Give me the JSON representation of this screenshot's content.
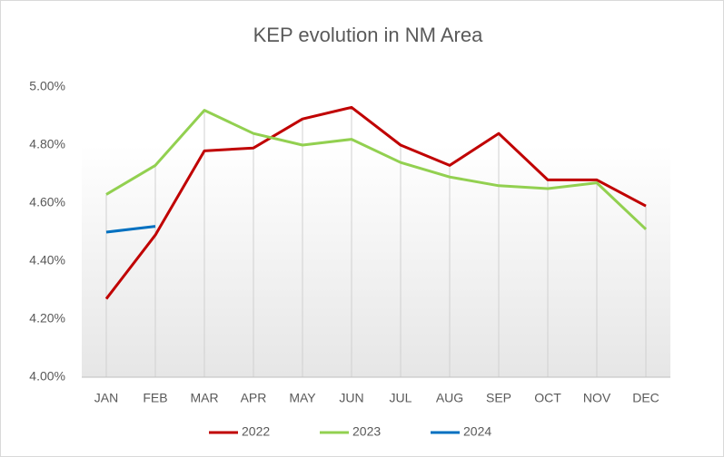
{
  "chart_data": {
    "type": "line",
    "title": "KEP evolution in NM Area",
    "categories": [
      "JAN",
      "FEB",
      "MAR",
      "APR",
      "MAY",
      "JUN",
      "JUL",
      "AUG",
      "SEP",
      "OCT",
      "NOV",
      "DEC"
    ],
    "series": [
      {
        "name": "2022",
        "color": "#c00000",
        "values": [
          4.27,
          4.49,
          4.78,
          4.79,
          4.89,
          4.93,
          4.8,
          4.73,
          4.84,
          4.68,
          4.68,
          4.59
        ]
      },
      {
        "name": "2023",
        "color": "#92d050",
        "values": [
          4.63,
          4.73,
          4.92,
          4.84,
          4.8,
          4.82,
          4.74,
          4.69,
          4.66,
          4.65,
          4.67,
          4.51
        ]
      },
      {
        "name": "2024",
        "color": "#0070c0",
        "values": [
          4.5,
          4.52,
          null,
          null,
          null,
          null,
          null,
          null,
          null,
          null,
          null,
          null
        ]
      }
    ],
    "ylim": [
      4.0,
      5.0
    ],
    "yticks": [
      {
        "value": 4.0,
        "label": "4.00%"
      },
      {
        "value": 4.2,
        "label": "4.20%"
      },
      {
        "value": 4.4,
        "label": "4.40%"
      },
      {
        "value": 4.6,
        "label": "4.60%"
      },
      {
        "value": 4.8,
        "label": "4.80%"
      },
      {
        "value": 5.0,
        "label": "5.00%"
      }
    ],
    "legend": "bottom"
  }
}
